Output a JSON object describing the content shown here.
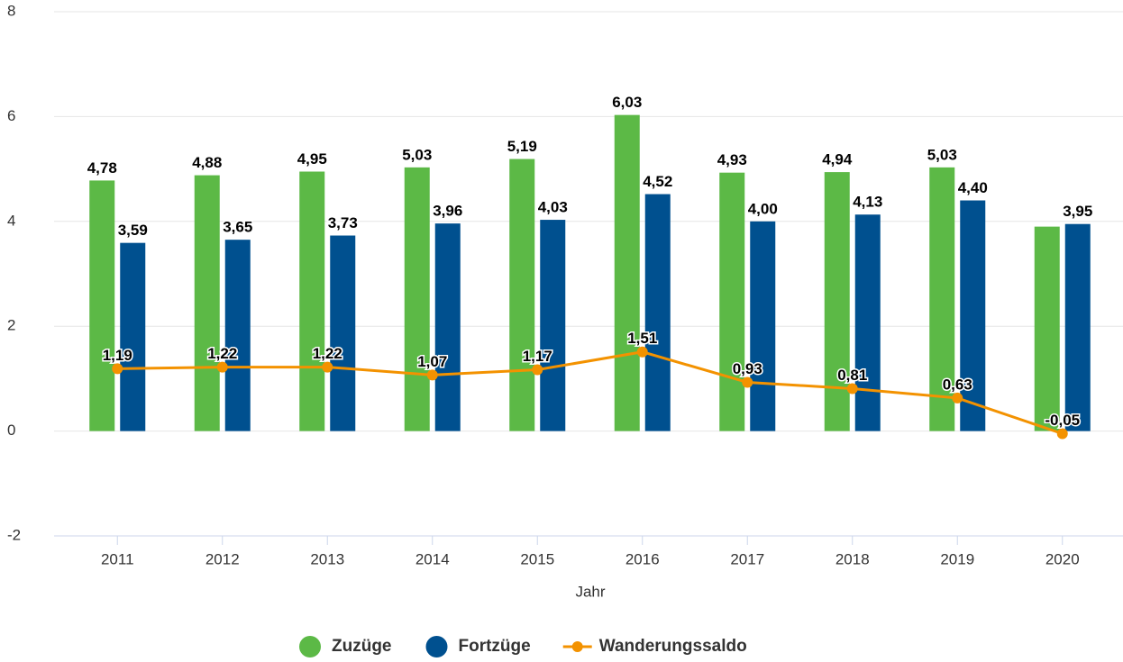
{
  "chart_data": {
    "type": "bar_line",
    "x_label": "Jahr",
    "categories": [
      "2011",
      "2012",
      "2013",
      "2014",
      "2015",
      "2016",
      "2017",
      "2018",
      "2019",
      "2020"
    ],
    "series": [
      {
        "name": "Zuzüge",
        "type": "bar",
        "color": "#5cb946",
        "values": [
          4.78,
          4.88,
          4.95,
          5.03,
          5.19,
          6.03,
          4.93,
          4.94,
          5.03,
          3.9
        ],
        "value_labels": [
          "4,78",
          "4,88",
          "4,95",
          "5,03",
          "5,19",
          "6,03",
          "4,93",
          "4,94",
          "5,03",
          null
        ]
      },
      {
        "name": "Fortzüge",
        "type": "bar",
        "color": "#00508f",
        "values": [
          3.59,
          3.65,
          3.73,
          3.96,
          4.03,
          4.52,
          4.0,
          4.13,
          4.4,
          3.95
        ],
        "value_labels": [
          "3,59",
          "3,65",
          "3,73",
          "3,96",
          "4,03",
          "4,52",
          "4,00",
          "4,13",
          "4,40",
          "3,95"
        ]
      },
      {
        "name": "Wanderungssaldo",
        "type": "line",
        "color": "#f39200",
        "values": [
          1.19,
          1.22,
          1.22,
          1.07,
          1.17,
          1.51,
          0.93,
          0.81,
          0.63,
          -0.05
        ],
        "value_labels": [
          "1,19",
          "1,22",
          "1,22",
          "1,07",
          "1,17",
          "1,51",
          "0,93",
          "0,81",
          "0,63",
          "-0,05"
        ]
      }
    ],
    "ylim": [
      -2,
      8
    ],
    "yticks": [
      -2,
      0,
      2,
      4,
      6,
      8
    ],
    "grid": true,
    "legend": "bottom"
  }
}
